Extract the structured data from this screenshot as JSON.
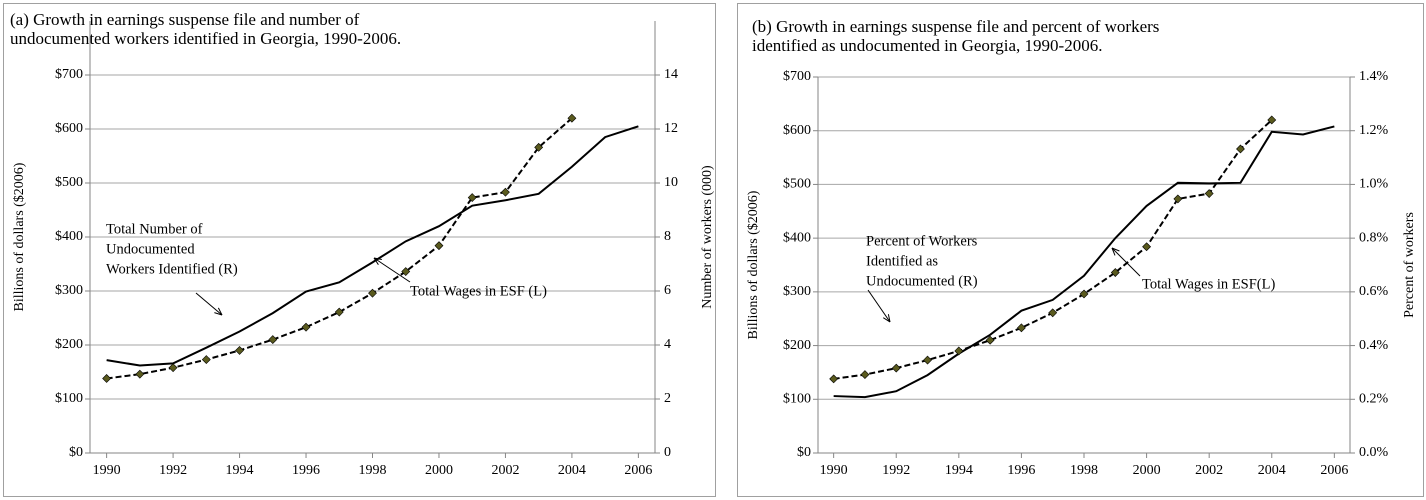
{
  "chart_data": [
    {
      "type": "line",
      "title": [
        "(a) Growth in earnings suspense file and number of",
        "undocumented workers identified in Georgia, 1990-2006."
      ],
      "y_label": "Billions of dollars ($2006)",
      "y2_label": "Number of workers (000)",
      "x": [
        1990,
        1991,
        1992,
        1993,
        1994,
        1995,
        1996,
        1997,
        1998,
        1999,
        2000,
        2001,
        2002,
        2003,
        2004,
        2005,
        2006
      ],
      "xlim": [
        1989.5,
        2006.5
      ],
      "xticks": [
        1990,
        1992,
        1994,
        1996,
        1998,
        2000,
        2002,
        2004,
        2006
      ],
      "ylim": [
        0,
        800
      ],
      "yticks": [
        {
          "value": 0,
          "label": "$0"
        },
        {
          "value": 100,
          "label": "$100"
        },
        {
          "value": 200,
          "label": "$200"
        },
        {
          "value": 300,
          "label": "$300"
        },
        {
          "value": 400,
          "label": "$400"
        },
        {
          "value": 500,
          "label": "$500"
        },
        {
          "value": 600,
          "label": "$600"
        },
        {
          "value": 700,
          "label": "$700"
        }
      ],
      "y2lim": [
        0,
        16
      ],
      "y2ticks": [
        0,
        2,
        4,
        6,
        8,
        10,
        12,
        14
      ],
      "grid": true,
      "series": [
        {
          "label_lines": [
            "Total Number of",
            "Undocumented",
            "Workers Identified (R)"
          ],
          "axis": "y2",
          "color": "#000000",
          "dash": false,
          "values": [
            3.44,
            3.24,
            3.32,
            3.9,
            4.5,
            5.18,
            5.98,
            6.32,
            7.06,
            7.84,
            8.4,
            9.16,
            9.36,
            9.6,
            10.6,
            11.7,
            12.1
          ]
        },
        {
          "label_lines": [
            "Total Wages in ESF  (L)"
          ],
          "color": "#000000",
          "dash": true,
          "marker": "diamond",
          "marker_color": "#5a5a1e",
          "values": [
            138,
            146,
            158,
            173,
            190,
            210,
            233,
            261,
            296,
            336,
            384,
            473,
            483,
            566,
            620,
            null,
            null
          ]
        }
      ]
    },
    {
      "type": "line",
      "title": [
        "(b) Growth in earnings suspense file and percent of workers",
        "identified as undocumented in Georgia, 1990-2006."
      ],
      "y_label": "Billions of dollars ($2006)",
      "y2_label": "Percent of workers",
      "x": [
        1990,
        1991,
        1992,
        1993,
        1994,
        1995,
        1996,
        1997,
        1998,
        1999,
        2000,
        2001,
        2002,
        2003,
        2004,
        2005,
        2006
      ],
      "xlim": [
        1989.5,
        2006.5
      ],
      "xticks": [
        1990,
        1992,
        1994,
        1996,
        1998,
        2000,
        2002,
        2004,
        2006
      ],
      "ylim": [
        0,
        700
      ],
      "yticks": [
        {
          "value": 0,
          "label": "$0"
        },
        {
          "value": 100,
          "label": "$100"
        },
        {
          "value": 200,
          "label": "$200"
        },
        {
          "value": 300,
          "label": "$300"
        },
        {
          "value": 400,
          "label": "$400"
        },
        {
          "value": 500,
          "label": "$500"
        },
        {
          "value": 600,
          "label": "$600"
        },
        {
          "value": 700,
          "label": "$700"
        }
      ],
      "y2lim": [
        0,
        1.4
      ],
      "y2ticks": [
        {
          "value": 0,
          "label": "0.0%"
        },
        {
          "value": 0.2,
          "label": "0.2%"
        },
        {
          "value": 0.4,
          "label": "0.4%"
        },
        {
          "value": 0.6,
          "label": "0.6%"
        },
        {
          "value": 0.8,
          "label": "0.8%"
        },
        {
          "value": 1.0,
          "label": "1.0%"
        },
        {
          "value": 1.2,
          "label": "1.2%"
        },
        {
          "value": 1.4,
          "label": "1.4%"
        }
      ],
      "grid": true,
      "series": [
        {
          "label_lines": [
            "Percent of Workers",
            "Identified as",
            "Undocumented (R)"
          ],
          "axis": "y2",
          "color": "#000000",
          "dash": false,
          "values": [
            0.212,
            0.208,
            0.23,
            0.29,
            0.37,
            0.44,
            0.53,
            0.57,
            0.66,
            0.8,
            0.92,
            1.006,
            1.004,
            1.006,
            1.196,
            1.186,
            1.216
          ]
        },
        {
          "label_lines": [
            "Total Wages in ESF(L)"
          ],
          "color": "#000000",
          "dash": true,
          "marker": "diamond",
          "marker_color": "#5a5a1e",
          "values": [
            138,
            146,
            158,
            173,
            190,
            210,
            233,
            261,
            296,
            336,
            384,
            473,
            483,
            566,
            620,
            null,
            null
          ]
        }
      ]
    }
  ]
}
